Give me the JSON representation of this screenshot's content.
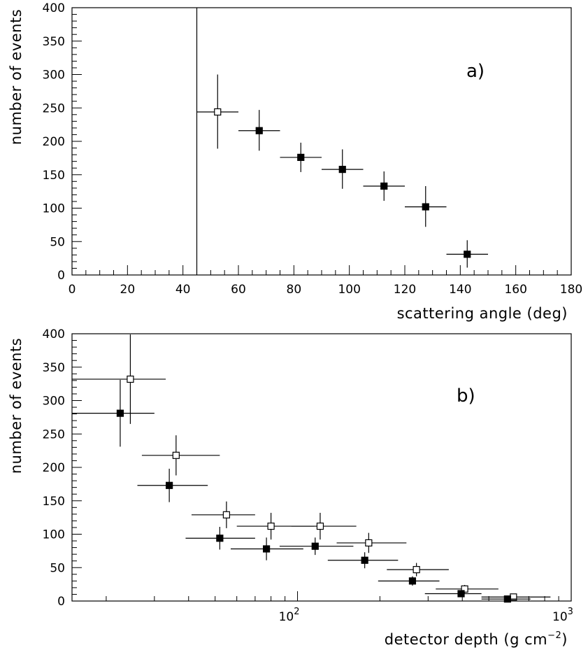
{
  "chart_data": [
    {
      "type": "scatter",
      "panel_label": "a)",
      "xlabel": "scattering angle (deg)",
      "ylabel": "number of events",
      "xlim": [
        0,
        180
      ],
      "ylim": [
        0,
        400
      ],
      "x_scale": "linear",
      "x_ticks": [
        0,
        20,
        40,
        60,
        80,
        100,
        120,
        140,
        160,
        180
      ],
      "y_ticks": [
        0,
        50,
        100,
        150,
        200,
        250,
        300,
        350,
        400
      ],
      "cut_line_x": 45,
      "series": [
        {
          "marker": "open-square",
          "points": [
            {
              "x": 52.5,
              "x_err": 7.5,
              "y": 244,
              "y_err_low": 55,
              "y_err_high": 56
            }
          ]
        },
        {
          "marker": "filled-square",
          "points": [
            {
              "x": 67.5,
              "x_err": 7.5,
              "y": 216,
              "y_err_low": 30,
              "y_err_high": 31
            },
            {
              "x": 82.5,
              "x_err": 7.5,
              "y": 176,
              "y_err_low": 22,
              "y_err_high": 22
            },
            {
              "x": 97.5,
              "x_err": 7.5,
              "y": 158,
              "y_err_low": 29,
              "y_err_high": 30
            },
            {
              "x": 112.5,
              "x_err": 7.5,
              "y": 133,
              "y_err_low": 22,
              "y_err_high": 22
            },
            {
              "x": 127.5,
              "x_err": 7.5,
              "y": 102,
              "y_err_low": 30,
              "y_err_high": 31
            },
            {
              "x": 142.5,
              "x_err": 7.5,
              "y": 31,
              "y_err_low": 20,
              "y_err_high": 21
            }
          ]
        }
      ]
    },
    {
      "type": "scatter",
      "panel_label": "b)",
      "xlabel": "detector depth (g cm",
      "xlabel_sup": "−2",
      "xlabel_end": ")",
      "ylabel": "number of events",
      "xlim": [
        15,
        1000
      ],
      "ylim": [
        0,
        400
      ],
      "x_scale": "log",
      "x_tick_labels": [
        {
          "value": 100,
          "base": "10",
          "exp": "2"
        },
        {
          "value": 1000,
          "base": "10",
          "exp": "3"
        }
      ],
      "y_ticks": [
        0,
        50,
        100,
        150,
        200,
        250,
        300,
        350,
        400
      ],
      "series": [
        {
          "marker": "open-square",
          "points": [
            {
              "x": 24.5,
              "x_lo": 15,
              "x_hi": 33,
              "y": 332,
              "y_err_low": 67,
              "y_err_high": 67
            },
            {
              "x": 36,
              "x_lo": 27,
              "x_hi": 52,
              "y": 218,
              "y_err_low": 30,
              "y_err_high": 30
            },
            {
              "x": 55,
              "x_lo": 41,
              "x_hi": 70,
              "y": 129,
              "y_err_low": 20,
              "y_err_high": 20
            },
            {
              "x": 80,
              "x_lo": 60,
              "x_hi": 115,
              "y": 112,
              "y_err_low": 20,
              "y_err_high": 20
            },
            {
              "x": 121,
              "x_lo": 95,
              "x_hi": 164,
              "y": 112,
              "y_err_low": 20,
              "y_err_high": 20
            },
            {
              "x": 182,
              "x_lo": 139,
              "x_hi": 250,
              "y": 87,
              "y_err_low": 15,
              "y_err_high": 15
            },
            {
              "x": 272,
              "x_lo": 212,
              "x_hi": 357,
              "y": 47,
              "y_err_low": 10,
              "y_err_high": 10
            },
            {
              "x": 408,
              "x_lo": 320,
              "x_hi": 542,
              "y": 18,
              "y_err_low": 6,
              "y_err_high": 6
            },
            {
              "x": 615,
              "x_lo": 470,
              "x_hi": 840,
              "y": 6,
              "y_err_low": 3,
              "y_err_high": 3
            }
          ]
        },
        {
          "marker": "filled-square",
          "points": [
            {
              "x": 22.5,
              "x_lo": 15,
              "x_hi": 30,
              "y": 281,
              "y_err_low": 50,
              "y_err_high": 50
            },
            {
              "x": 34,
              "x_lo": 26,
              "x_hi": 47,
              "y": 173,
              "y_err_low": 25,
              "y_err_high": 25
            },
            {
              "x": 52,
              "x_lo": 39,
              "x_hi": 70,
              "y": 94,
              "y_err_low": 17,
              "y_err_high": 17
            },
            {
              "x": 77,
              "x_lo": 57,
              "x_hi": 105,
              "y": 78,
              "y_err_low": 17,
              "y_err_high": 17
            },
            {
              "x": 116,
              "x_lo": 86,
              "x_hi": 160,
              "y": 82,
              "y_err_low": 13,
              "y_err_high": 13
            },
            {
              "x": 176,
              "x_lo": 129,
              "x_hi": 233,
              "y": 61,
              "y_err_low": 12,
              "y_err_high": 12
            },
            {
              "x": 263,
              "x_lo": 197,
              "x_hi": 330,
              "y": 30,
              "y_err_low": 7,
              "y_err_high": 7
            },
            {
              "x": 396,
              "x_lo": 292,
              "x_hi": 470,
              "y": 11,
              "y_err_low": 4,
              "y_err_high": 4
            },
            {
              "x": 585,
              "x_lo": 470,
              "x_hi": 710,
              "y": 3,
              "y_err_low": 2,
              "y_err_high": 2
            }
          ]
        }
      ]
    }
  ]
}
